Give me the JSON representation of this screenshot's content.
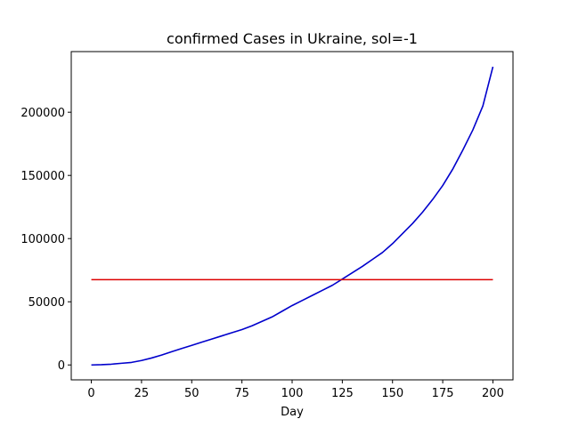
{
  "chart_data": {
    "type": "line",
    "title": "confirmed Cases in Ukraine, sol=-1",
    "xlabel": "Day",
    "ylabel": "",
    "xlim": [
      -10,
      210
    ],
    "ylim": [
      -11800,
      248000
    ],
    "grid": false,
    "xticks": [
      {
        "value": 0,
        "label": "0"
      },
      {
        "value": 25,
        "label": "25"
      },
      {
        "value": 50,
        "label": "50"
      },
      {
        "value": 75,
        "label": "75"
      },
      {
        "value": 100,
        "label": "100"
      },
      {
        "value": 125,
        "label": "125"
      },
      {
        "value": 150,
        "label": "150"
      },
      {
        "value": 175,
        "label": "175"
      },
      {
        "value": 200,
        "label": "200"
      }
    ],
    "yticks": [
      {
        "value": 0,
        "label": "0"
      },
      {
        "value": 50000,
        "label": "50000"
      },
      {
        "value": 100000,
        "label": "100000"
      },
      {
        "value": 150000,
        "label": "150000"
      },
      {
        "value": 200000,
        "label": "200000"
      }
    ],
    "series": [
      {
        "color": "#0000cc",
        "x": [
          0,
          5,
          10,
          15,
          20,
          25,
          30,
          35,
          40,
          45,
          50,
          55,
          60,
          65,
          70,
          75,
          80,
          85,
          90,
          95,
          100,
          105,
          110,
          115,
          120,
          125,
          130,
          135,
          140,
          145,
          150,
          155,
          160,
          165,
          170,
          175,
          180,
          185,
          190,
          195,
          200
        ],
        "y": [
          0,
          200,
          600,
          1300,
          2000,
          3500,
          5500,
          7800,
          10500,
          13000,
          15500,
          18000,
          20500,
          23000,
          25500,
          28000,
          31000,
          34500,
          38000,
          42500,
          47000,
          51000,
          55000,
          59000,
          63000,
          68000,
          73000,
          78000,
          83500,
          89000,
          96000,
          104000,
          112000,
          121000,
          131000,
          142000,
          155000,
          170000,
          186000,
          205000,
          236000
        ]
      },
      {
        "color": "#dd0000",
        "x": [
          0,
          200
        ],
        "y": [
          67500,
          67500
        ]
      }
    ]
  }
}
